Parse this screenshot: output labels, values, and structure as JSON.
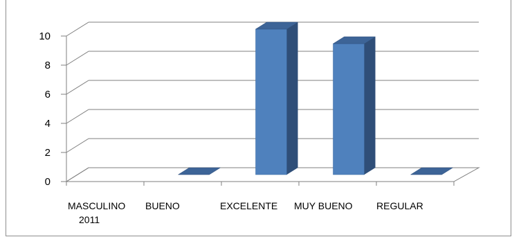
{
  "chart_data": {
    "type": "bar",
    "style": "3d-column",
    "categories": [
      [
        "MASCULINO",
        "2011"
      ],
      [
        "BUENO"
      ],
      [
        "EXCELENTE"
      ],
      [
        "MUY BUENO"
      ],
      [
        "REGULAR"
      ]
    ],
    "values": [
      null,
      0,
      10,
      9,
      0
    ],
    "y_ticks": [
      "0",
      "2",
      "4",
      "6",
      "8",
      "10"
    ],
    "ylim": [
      0,
      10
    ],
    "grid": true,
    "legend": "none",
    "colors": {
      "front": "#4f81bd",
      "side": "#2f4e78",
      "top": "#3d6497",
      "grid": "#7f7f7f"
    }
  }
}
